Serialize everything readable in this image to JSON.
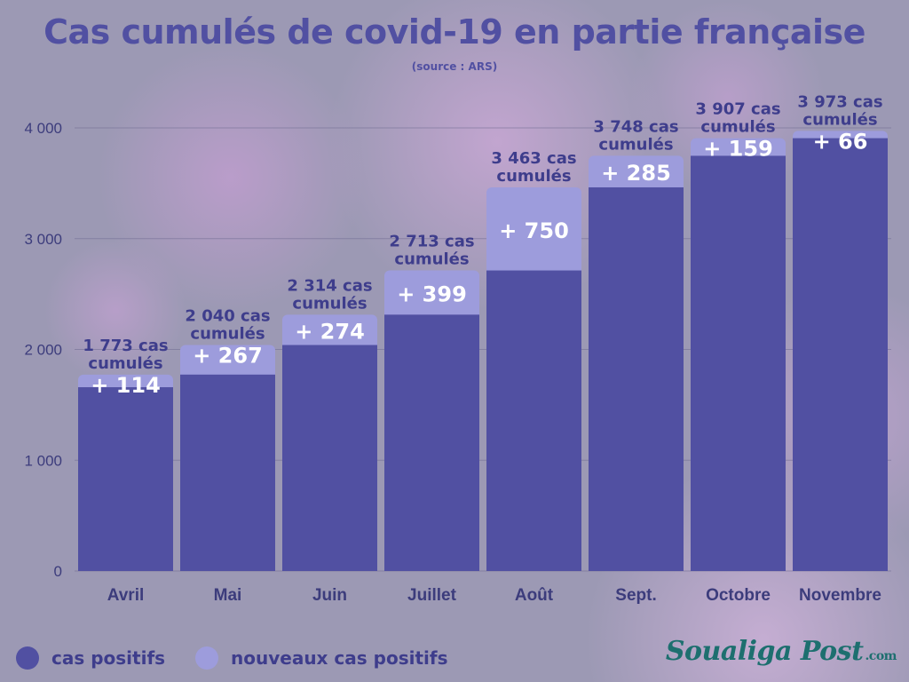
{
  "title": "Cas cumulés de covid-19 en partie française",
  "subtitle": "(source : ARS)",
  "legend": {
    "positive_label": "cas positifs",
    "new_label": "nouveaux cas positifs"
  },
  "brand": {
    "name": "Soualiga Post",
    "suffix": ".com"
  },
  "colors": {
    "base": "#5150a2",
    "new": "#9d9cdc",
    "label": "#3e3d8c",
    "axis_text": "#3c3c7c"
  },
  "chart_data": {
    "type": "bar",
    "stacked": true,
    "title": "Cas cumulés de covid-19 en partie française",
    "subtitle": "(source : ARS)",
    "categories": [
      "Avril",
      "Mai",
      "Juin",
      "Juillet",
      "Août",
      "Sept.",
      "Octobre",
      "Novembre"
    ],
    "series": [
      {
        "name": "cas positifs",
        "values": [
          1659,
          1773,
          2040,
          2314,
          2713,
          3463,
          3748,
          3907
        ]
      },
      {
        "name": "nouveaux cas positifs",
        "values": [
          114,
          267,
          274,
          399,
          750,
          285,
          159,
          66
        ]
      }
    ],
    "totals": [
      1773,
      2040,
      2314,
      2713,
      3463,
      3748,
      3907,
      3973
    ],
    "total_labels": [
      "1 773 cas cumulés",
      "2 040 cas cumulés",
      "2 314 cas cumulés",
      "2 713 cas cumulés",
      "3 463 cas cumulés",
      "3 748 cas cumulés",
      "3 907 cas cumulés",
      "3 973 cas cumulés"
    ],
    "increment_labels": [
      "+ 114",
      "+ 267",
      "+ 274",
      "+ 399",
      "+ 750",
      "+ 285",
      "+ 159",
      "+ 66"
    ],
    "yticks": [
      0,
      1000,
      2000,
      3000,
      4000
    ],
    "ytick_labels": [
      "0",
      "1 000",
      "2 000",
      "3 000",
      "4 000"
    ],
    "ylim": [
      0,
      4000
    ],
    "grid": true,
    "legend_position": "bottom-left"
  }
}
